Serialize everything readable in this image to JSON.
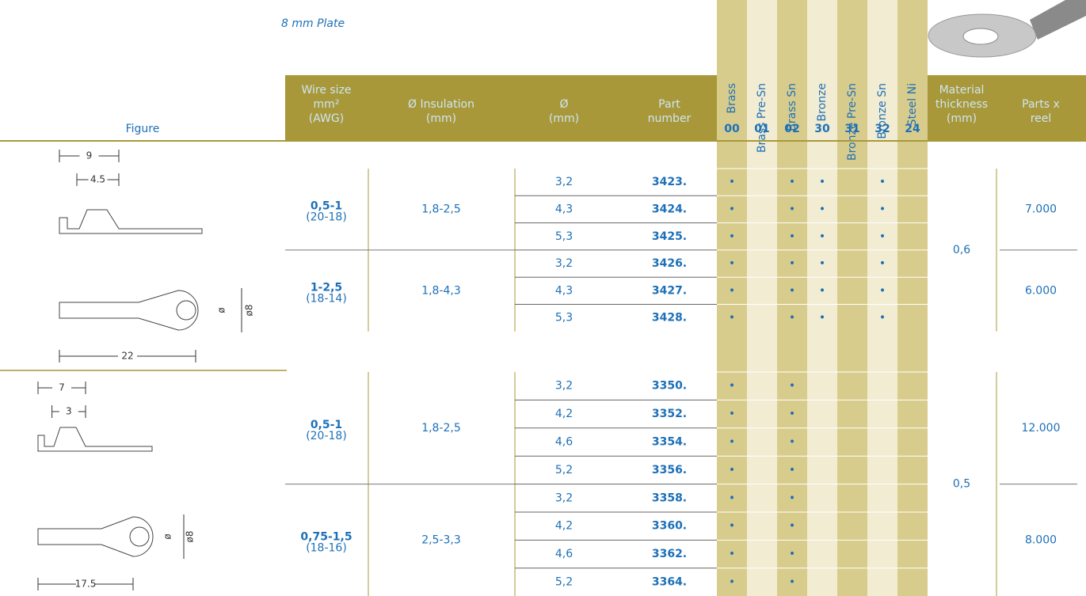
{
  "title": "8 mm Plate",
  "header": {
    "figure": "Figure",
    "wire_size": [
      "Wire size",
      "mm²",
      "(AWG)"
    ],
    "insulation": [
      "Ø Insulation",
      "(mm)"
    ],
    "diameter": [
      "Ø",
      "(mm)"
    ],
    "part": [
      "Part",
      "number"
    ],
    "thickness": [
      "Material",
      "thickness",
      "(mm)"
    ],
    "reel": [
      "Parts x",
      "reel"
    ]
  },
  "materials": [
    {
      "name": "Brass",
      "code": "00"
    },
    {
      "name": "Brass Pre-Sn",
      "code": "01"
    },
    {
      "name": "Brass Sn",
      "code": "02"
    },
    {
      "name": "Bronze",
      "code": "30"
    },
    {
      "name": "Bronze Pre-Sn",
      "code": "31"
    },
    {
      "name": "Bronze Sn",
      "code": "32"
    },
    {
      "name": "Steel Ni",
      "code": "24"
    }
  ],
  "dot": "•",
  "groups": [
    {
      "thickness": "0,6",
      "figure": {
        "length": "9",
        "crimp": "4.5",
        "hole": "ø",
        "outer": "ø8",
        "total": "22"
      },
      "subgroups": [
        {
          "wire": "0,5-1",
          "awg": "(20-18)",
          "insulation": "1,8-2,5",
          "reel": "7.000",
          "rows": [
            {
              "dia": "3,2",
              "part": "3423.",
              "m": [
                true,
                false,
                true,
                true,
                false,
                true,
                false
              ]
            },
            {
              "dia": "4,3",
              "part": "3424.",
              "m": [
                true,
                false,
                true,
                true,
                false,
                true,
                false
              ]
            },
            {
              "dia": "5,3",
              "part": "3425.",
              "m": [
                true,
                false,
                true,
                true,
                false,
                true,
                false
              ]
            }
          ]
        },
        {
          "wire": "1-2,5",
          "awg": "(18-14)",
          "insulation": "1,8-4,3",
          "reel": "6.000",
          "rows": [
            {
              "dia": "3,2",
              "part": "3426.",
              "m": [
                true,
                false,
                true,
                true,
                false,
                true,
                false
              ]
            },
            {
              "dia": "4,3",
              "part": "3427.",
              "m": [
                true,
                false,
                true,
                true,
                false,
                true,
                false
              ]
            },
            {
              "dia": "5,3",
              "part": "3428.",
              "m": [
                true,
                false,
                true,
                true,
                false,
                true,
                false
              ]
            }
          ]
        }
      ]
    },
    {
      "thickness": "0,5",
      "figure": {
        "length": "7",
        "crimp": "3",
        "hole": "ø",
        "outer": "ø8",
        "total": "17.5"
      },
      "subgroups": [
        {
          "wire": "0,5-1",
          "awg": "(20-18)",
          "insulation": "1,8-2,5",
          "reel": "12.000",
          "rows": [
            {
              "dia": "3,2",
              "part": "3350.",
              "m": [
                true,
                false,
                true,
                false,
                false,
                false,
                false
              ]
            },
            {
              "dia": "4,2",
              "part": "3352.",
              "m": [
                true,
                false,
                true,
                false,
                false,
                false,
                false
              ]
            },
            {
              "dia": "4,6",
              "part": "3354.",
              "m": [
                true,
                false,
                true,
                false,
                false,
                false,
                false
              ]
            },
            {
              "dia": "5,2",
              "part": "3356.",
              "m": [
                true,
                false,
                true,
                false,
                false,
                false,
                false
              ]
            }
          ]
        },
        {
          "wire": "0,75-1,5",
          "awg": "(18-16)",
          "insulation": "2,5-3,3",
          "reel": "8.000",
          "rows": [
            {
              "dia": "3,2",
              "part": "3358.",
              "m": [
                true,
                false,
                true,
                false,
                false,
                false,
                false
              ]
            },
            {
              "dia": "4,2",
              "part": "3360.",
              "m": [
                true,
                false,
                true,
                false,
                false,
                false,
                false
              ]
            },
            {
              "dia": "4,6",
              "part": "3362.",
              "m": [
                true,
                false,
                true,
                false,
                false,
                false,
                false
              ]
            },
            {
              "dia": "5,2",
              "part": "3364.",
              "m": [
                true,
                false,
                true,
                false,
                false,
                false,
                false
              ]
            }
          ]
        }
      ]
    }
  ]
}
